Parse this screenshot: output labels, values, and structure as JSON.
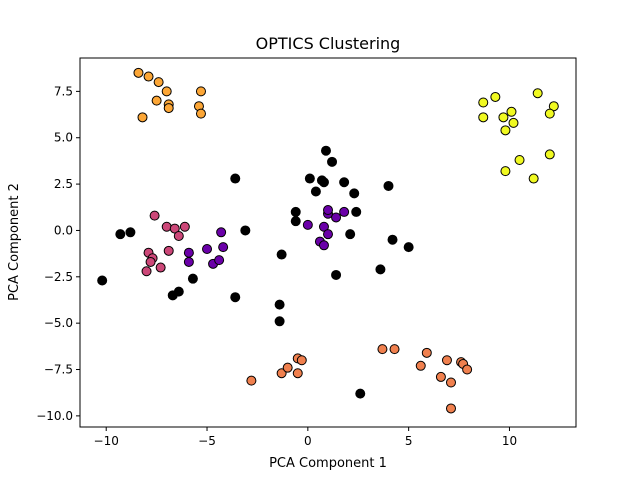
{
  "chart_data": {
    "type": "scatter",
    "title": "OPTICS Clustering",
    "xlabel": "PCA Component 1",
    "ylabel": "PCA Component 2",
    "xlim": [
      -11.3,
      13.3
    ],
    "ylim": [
      -10.6,
      9.3
    ],
    "xticks": [
      -10,
      -5,
      0,
      5,
      10
    ],
    "yticks": [
      -10.0,
      -7.5,
      -5.0,
      -2.5,
      0.0,
      2.5,
      5.0,
      7.5
    ],
    "xtick_labels": [
      "−10",
      "−5",
      "0",
      "5",
      "10"
    ],
    "ytick_labels": [
      "−10.0",
      "−7.5",
      "−5.0",
      "−2.5",
      "0.0",
      "2.5",
      "5.0",
      "7.5"
    ],
    "grid": false,
    "series": [
      {
        "color": "#000000",
        "points": [
          [
            -10.2,
            -2.7
          ],
          [
            -9.3,
            -0.2
          ],
          [
            -8.8,
            -0.1
          ],
          [
            -6.7,
            -3.5
          ],
          [
            -6.4,
            -3.3
          ],
          [
            -5.7,
            -2.6
          ],
          [
            -3.6,
            2.8
          ],
          [
            -3.6,
            -3.6
          ],
          [
            -3.1,
            0.0
          ],
          [
            -1.4,
            -4.0
          ],
          [
            -1.4,
            -4.9
          ],
          [
            -1.3,
            -1.3
          ],
          [
            -0.6,
            1.0
          ],
          [
            -0.6,
            0.5
          ],
          [
            0.1,
            2.8
          ],
          [
            0.4,
            2.1
          ],
          [
            0.7,
            2.7
          ],
          [
            0.8,
            2.6
          ],
          [
            0.9,
            4.3
          ],
          [
            1.2,
            3.7
          ],
          [
            1.4,
            -2.4
          ],
          [
            1.8,
            2.6
          ],
          [
            2.1,
            -0.2
          ],
          [
            2.3,
            2.0
          ],
          [
            2.4,
            1.0
          ],
          [
            2.6,
            -8.8
          ],
          [
            3.6,
            -2.1
          ],
          [
            4.0,
            2.4
          ],
          [
            4.2,
            -0.5
          ],
          [
            5.0,
            -0.9
          ]
        ]
      },
      {
        "color": "#6a00a8",
        "points": [
          [
            -5.0,
            -1.0
          ],
          [
            -4.7,
            -1.8
          ],
          [
            -4.4,
            -1.6
          ],
          [
            -4.2,
            -0.9
          ],
          [
            -4.3,
            -0.1
          ],
          [
            -5.9,
            -1.2
          ],
          [
            -5.9,
            -1.7
          ],
          [
            0.0,
            0.3
          ],
          [
            0.6,
            -0.6
          ],
          [
            0.8,
            0.2
          ],
          [
            0.8,
            -0.8
          ],
          [
            1.0,
            -0.2
          ],
          [
            1.0,
            0.9
          ],
          [
            1.0,
            1.1
          ],
          [
            1.4,
            0.7
          ],
          [
            1.8,
            1.0
          ]
        ]
      },
      {
        "color": "#cc4778",
        "points": [
          [
            -7.6,
            0.8
          ],
          [
            -7.3,
            -2.0
          ],
          [
            -7.0,
            0.2
          ],
          [
            -6.9,
            -1.1
          ],
          [
            -6.6,
            0.1
          ],
          [
            -6.4,
            -0.3
          ],
          [
            -6.1,
            0.2
          ],
          [
            -7.9,
            -1.2
          ],
          [
            -7.7,
            -1.5
          ],
          [
            -7.8,
            -1.7
          ],
          [
            -8.0,
            -2.2
          ]
        ]
      },
      {
        "color": "#f0804e",
        "points": [
          [
            -2.8,
            -8.1
          ],
          [
            -1.3,
            -7.7
          ],
          [
            -1.0,
            -7.4
          ],
          [
            -0.5,
            -6.9
          ],
          [
            -0.3,
            -7.0
          ],
          [
            -0.5,
            -7.7
          ],
          [
            3.7,
            -6.4
          ],
          [
            4.3,
            -6.4
          ],
          [
            5.6,
            -7.3
          ],
          [
            5.9,
            -6.6
          ],
          [
            6.6,
            -7.9
          ],
          [
            6.9,
            -7.0
          ],
          [
            7.1,
            -8.2
          ],
          [
            7.6,
            -7.1
          ],
          [
            7.7,
            -7.2
          ],
          [
            7.9,
            -7.5
          ],
          [
            7.1,
            -9.6
          ]
        ]
      },
      {
        "color": "#fca636",
        "points": [
          [
            -8.4,
            8.5
          ],
          [
            -7.9,
            8.3
          ],
          [
            -7.4,
            8.0
          ],
          [
            -7.0,
            7.5
          ],
          [
            -7.5,
            7.0
          ],
          [
            -6.9,
            6.8
          ],
          [
            -6.9,
            6.6
          ],
          [
            -5.3,
            7.5
          ],
          [
            -5.4,
            6.7
          ],
          [
            -5.3,
            6.3
          ],
          [
            -8.2,
            6.1
          ]
        ]
      },
      {
        "color": "#f0f921",
        "points": [
          [
            8.7,
            6.9
          ],
          [
            9.3,
            7.2
          ],
          [
            9.7,
            6.1
          ],
          [
            9.8,
            5.4
          ],
          [
            10.1,
            6.4
          ],
          [
            10.2,
            5.8
          ],
          [
            8.7,
            6.1
          ],
          [
            11.4,
            7.4
          ],
          [
            12.2,
            6.7
          ],
          [
            12.0,
            6.3
          ],
          [
            9.8,
            3.2
          ],
          [
            10.5,
            3.8
          ],
          [
            11.2,
            2.8
          ],
          [
            12.0,
            4.1
          ]
        ]
      }
    ]
  }
}
